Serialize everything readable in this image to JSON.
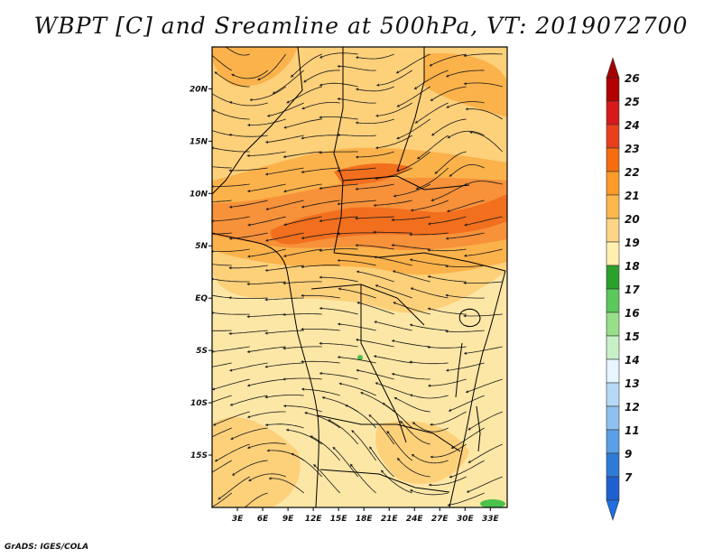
{
  "title": "WBPT [C] and Sreamline at 500hPa, VT: 2019072700",
  "credit": "GrADS: IGES/COLA",
  "lat_labels": [
    "20N",
    "15N",
    "10N",
    "5N",
    "EQ",
    "5S",
    "10S",
    "15S"
  ],
  "lat_values": [
    20,
    15,
    10,
    5,
    0,
    -5,
    -10,
    -15
  ],
  "lon_labels": [
    "3E",
    "6E",
    "9E",
    "12E",
    "15E",
    "18E",
    "21E",
    "24E",
    "27E",
    "30E",
    "33E"
  ],
  "lon_values": [
    3,
    6,
    9,
    12,
    15,
    18,
    21,
    24,
    27,
    30,
    33
  ],
  "colorbar": {
    "labels": [
      "26",
      "25",
      "24",
      "23",
      "22",
      "21",
      "20",
      "19",
      "18",
      "17",
      "16",
      "15",
      "14",
      "13",
      "12",
      "11",
      "9",
      "7"
    ],
    "colors": [
      "#b30000",
      "#d7191c",
      "#e8401b",
      "#f46d0e",
      "#fb9a29",
      "#fdb84d",
      "#fdd586",
      "#fff0b0",
      "#2ca02c",
      "#5ac85a",
      "#98df8a",
      "#c7f0c7",
      "#e6f5ff",
      "#b7d9f7",
      "#8fc1f0",
      "#5aa0e6",
      "#2f7ad6",
      "#1f5fd0"
    ],
    "top_arrow_color": "#a50000",
    "bottom_arrow_color": "#1f6fe0"
  },
  "map_colors": {
    "base": "#fde7a6",
    "band_20": "#fdd07a",
    "band_21": "#fbb24a",
    "band_22": "#f7913a",
    "band_23": "#f26f1e",
    "green": "#4cc24c"
  }
}
